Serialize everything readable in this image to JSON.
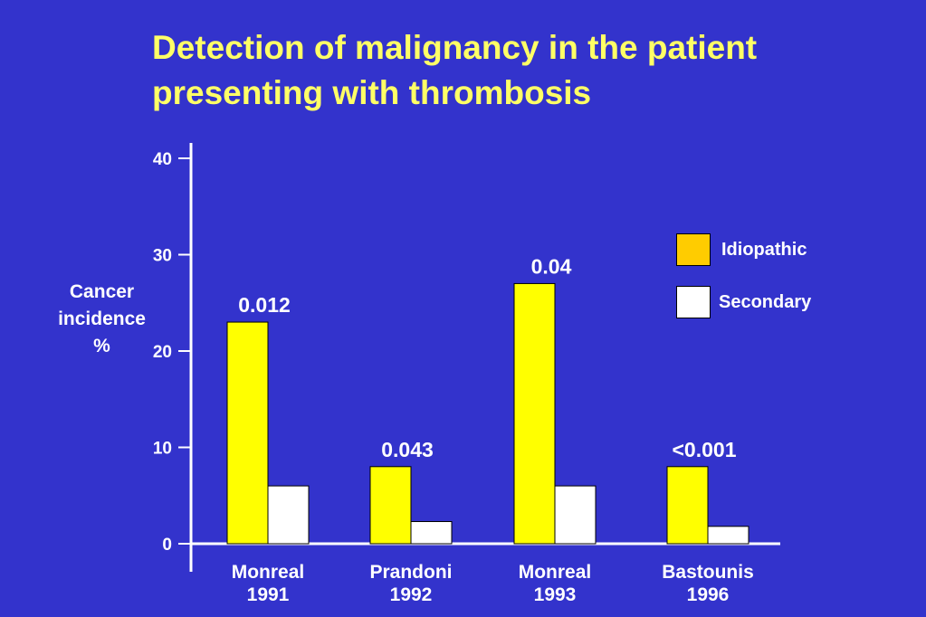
{
  "title_lines": [
    "Detection of malignancy in the patient",
    "presenting with thrombosis"
  ],
  "chart_data": {
    "type": "bar",
    "title": "Detection of malignancy in the patient presenting with thrombosis",
    "ylabel_lines": [
      "Cancer",
      "incidence",
      "%"
    ],
    "ylim": [
      0,
      40
    ],
    "yticks": [
      0,
      10,
      20,
      30,
      40
    ],
    "categories": [
      {
        "name": "Monreal",
        "year": "1991",
        "p_value": "0.012"
      },
      {
        "name": "Prandoni",
        "year": "1992",
        "p_value": "0.043"
      },
      {
        "name": "Monreal",
        "year": "1993",
        "p_value": "0.04"
      },
      {
        "name": "Bastounis",
        "year": "1996",
        "p_value": "<0.001"
      }
    ],
    "series": [
      {
        "name": "Idiopathic",
        "color": "#ffff00",
        "values": [
          23,
          8,
          27,
          8
        ]
      },
      {
        "name": "Secondary",
        "color": "#ffffff",
        "values": [
          6,
          2.3,
          6,
          1.8
        ]
      }
    ],
    "legend_position": "right",
    "legend_swatch_colors": [
      "#ffcc00",
      "#ffffff"
    ],
    "grid": false
  }
}
